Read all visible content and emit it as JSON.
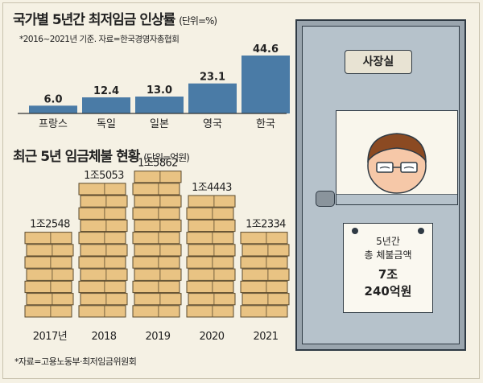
{
  "chart_data": [
    {
      "type": "bar",
      "title": "국가별 5년간 최저임금 인상률",
      "unit": "(단위=%)",
      "note": "*2016~2021년 기준. 자료=한국경영자총협회",
      "categories": [
        "프랑스",
        "독일",
        "일본",
        "영국",
        "한국"
      ],
      "values": [
        6.0,
        12.4,
        13.0,
        23.1,
        44.6
      ],
      "value_labels": [
        "6.0",
        "12.4",
        "13.0",
        "23.1",
        "44.6"
      ],
      "ylim": [
        0,
        44.6
      ],
      "bar_color": "#4a7ba6"
    },
    {
      "type": "bar",
      "title": "최근 5년 임금체불 현황",
      "unit": "(단위=억원)",
      "categories": [
        "2017년",
        "2018",
        "2019",
        "2020",
        "2021"
      ],
      "values": [
        12548,
        15053,
        15862,
        14443,
        12334
      ],
      "value_labels": [
        "1조2548",
        "1조5053",
        "1조5862",
        "1조4443",
        "1조2334"
      ],
      "box_color": "#e9c383"
    }
  ],
  "illustration": {
    "door_plate": "사장실",
    "sign_lines": [
      "5년간",
      "총 체불금액",
      "7조",
      "240억원"
    ]
  },
  "source": "*자료=고용노동부·최저임금위원회"
}
